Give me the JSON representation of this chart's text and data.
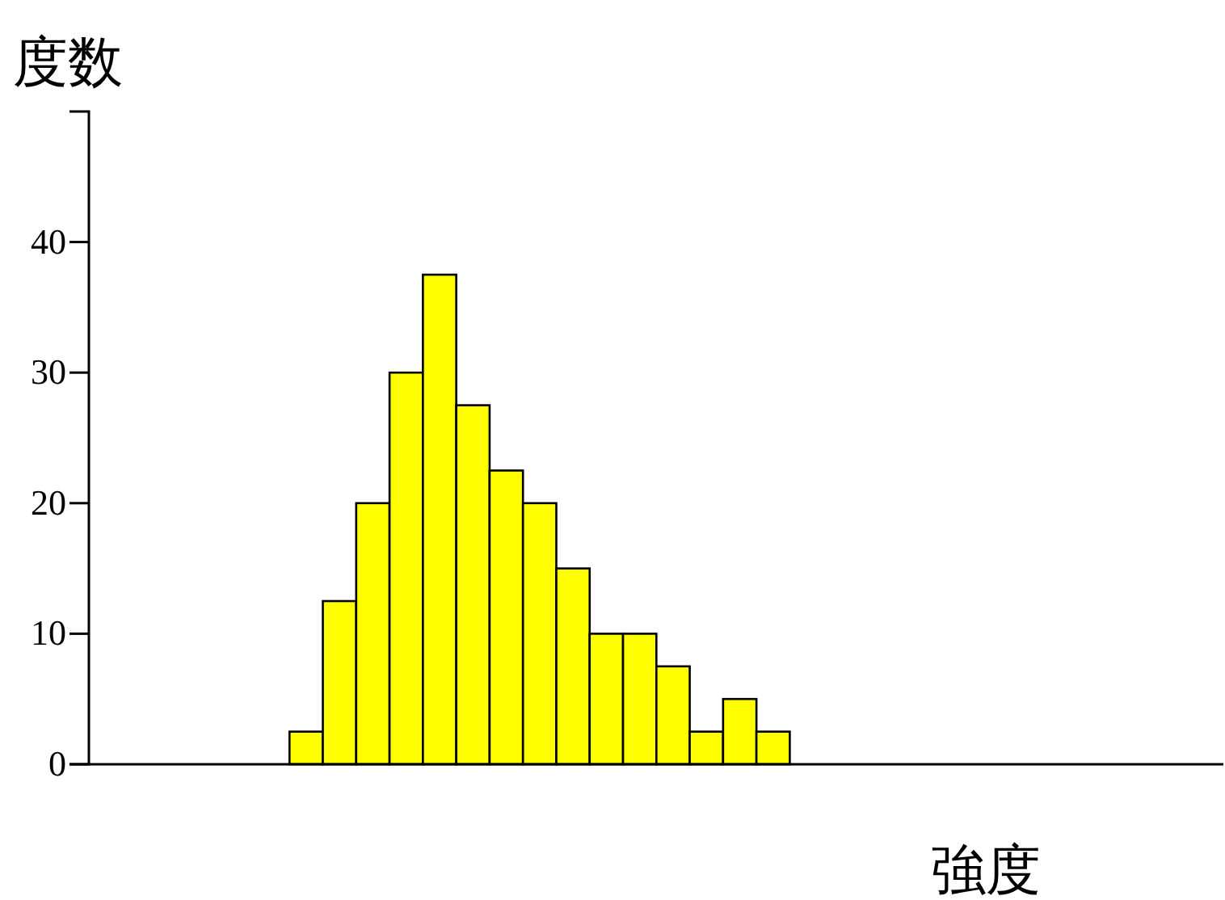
{
  "chart_data": {
    "type": "bar",
    "xlabel": "強度",
    "ylabel": "度数",
    "categories": [
      null,
      null,
      null,
      null,
      null,
      null,
      null,
      null,
      null,
      null,
      null,
      null,
      null,
      null,
      null,
      null,
      null,
      null,
      null,
      null,
      null,
      null,
      null,
      null,
      null,
      null,
      null,
      null,
      null,
      null,
      null,
      null,
      null,
      null
    ],
    "values": [
      null,
      null,
      null,
      null,
      null,
      null,
      2.5,
      12.5,
      20,
      30,
      37.5,
      27.5,
      22.5,
      20,
      15,
      10,
      10,
      7.5,
      2.5,
      5,
      2.5,
      null,
      null,
      null,
      null,
      null,
      null,
      null,
      null,
      null,
      null,
      null,
      null,
      null
    ],
    "color": "#ffff00",
    "ylim": [
      0,
      50
    ],
    "yticks": [
      0,
      10,
      20,
      30,
      40
    ],
    "grid": false,
    "tick_labels": "y"
  }
}
